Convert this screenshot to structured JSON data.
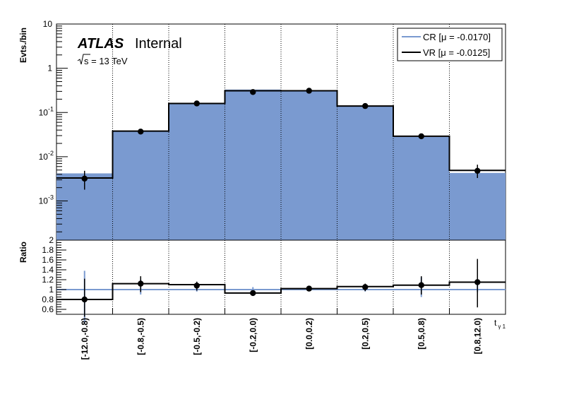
{
  "chart_data": {
    "type": "bar",
    "header": {
      "experiment": "ATLAS",
      "status": "Internal",
      "energy_prefix": "s",
      "energy_suffix": " = 13 TeV"
    },
    "categories": [
      "[-12.0,-0.8)",
      "[-0.8,-0.5)",
      "[-0.5,-0.2)",
      "[-0.2,0.0)",
      "[0.0,0.2)",
      "[0.2,0.5)",
      "[0.5,0.8)",
      "[0.8,12.0)"
    ],
    "top": {
      "ylabel": "Evts./bin",
      "yscale": "log",
      "ylim": [
        0.00013,
        10
      ],
      "yticks": [
        {
          "value": 0.001,
          "base": "10",
          "exp": "-3"
        },
        {
          "value": 0.01,
          "base": "10",
          "exp": "-2"
        },
        {
          "value": 0.1,
          "base": "10",
          "exp": "-1"
        },
        {
          "value": 1,
          "base": "1",
          "exp": ""
        },
        {
          "value": 10,
          "base": "10",
          "exp": ""
        }
      ],
      "series": [
        {
          "name": "CR [μ = -0.0170]",
          "kind": "filled-histogram",
          "color": "#7a9ad0",
          "values": [
            0.0042,
            0.038,
            0.16,
            0.33,
            0.31,
            0.14,
            0.028,
            0.0043
          ]
        },
        {
          "name": "VR [μ = -0.0125]",
          "kind": "step-line",
          "color": "#000000",
          "values": [
            0.0033,
            0.038,
            0.16,
            0.31,
            0.31,
            0.14,
            0.029,
            0.0049
          ]
        }
      ],
      "points": {
        "values": [
          0.0032,
          0.037,
          0.16,
          0.29,
          0.31,
          0.14,
          0.029,
          0.0048
        ],
        "err_low": [
          0.0018,
          0.033,
          0.145,
          0.27,
          0.29,
          0.128,
          0.026,
          0.0033
        ],
        "err_high": [
          0.0048,
          0.041,
          0.175,
          0.31,
          0.33,
          0.152,
          0.032,
          0.0066
        ]
      }
    },
    "ratio": {
      "ylabel": "Ratio",
      "ylim": [
        0.5,
        2
      ],
      "yticks": [
        {
          "value": 0.6,
          "label": "0.6"
        },
        {
          "value": 0.8,
          "label": "0.8"
        },
        {
          "value": 1,
          "label": "1"
        },
        {
          "value": 1.2,
          "label": "1.2"
        },
        {
          "value": 1.4,
          "label": "1.4"
        },
        {
          "value": 1.6,
          "label": "1.6"
        },
        {
          "value": 1.8,
          "label": "1.8"
        },
        {
          "value": 2,
          "label": "2"
        }
      ],
      "reference": 1,
      "step_values": [
        0.8,
        1.12,
        1.1,
        0.93,
        1.02,
        1.06,
        1.09,
        1.15
      ],
      "points": [
        0.8,
        1.12,
        1.08,
        0.93,
        1.02,
        1.05,
        1.09,
        1.15
      ],
      "err_low": [
        0.45,
        0.95,
        0.98,
        0.88,
        0.98,
        0.97,
        0.9,
        0.64
      ],
      "err_high": [
        1.22,
        1.27,
        1.16,
        0.98,
        1.06,
        1.12,
        1.27,
        1.62
      ],
      "cr_err_low": [
        0.32,
        0.9,
        0.96,
        0.87,
        0.97,
        0.96,
        0.85,
        0.95
      ],
      "cr_err_high": [
        1.38,
        1.2,
        1.15,
        1.05,
        1.05,
        1.1,
        1.25,
        1.2
      ]
    },
    "xlabel": {
      "base": "t",
      "sub": "γ 1"
    },
    "grid": "vertical dotted",
    "legend_position": "top-right"
  }
}
